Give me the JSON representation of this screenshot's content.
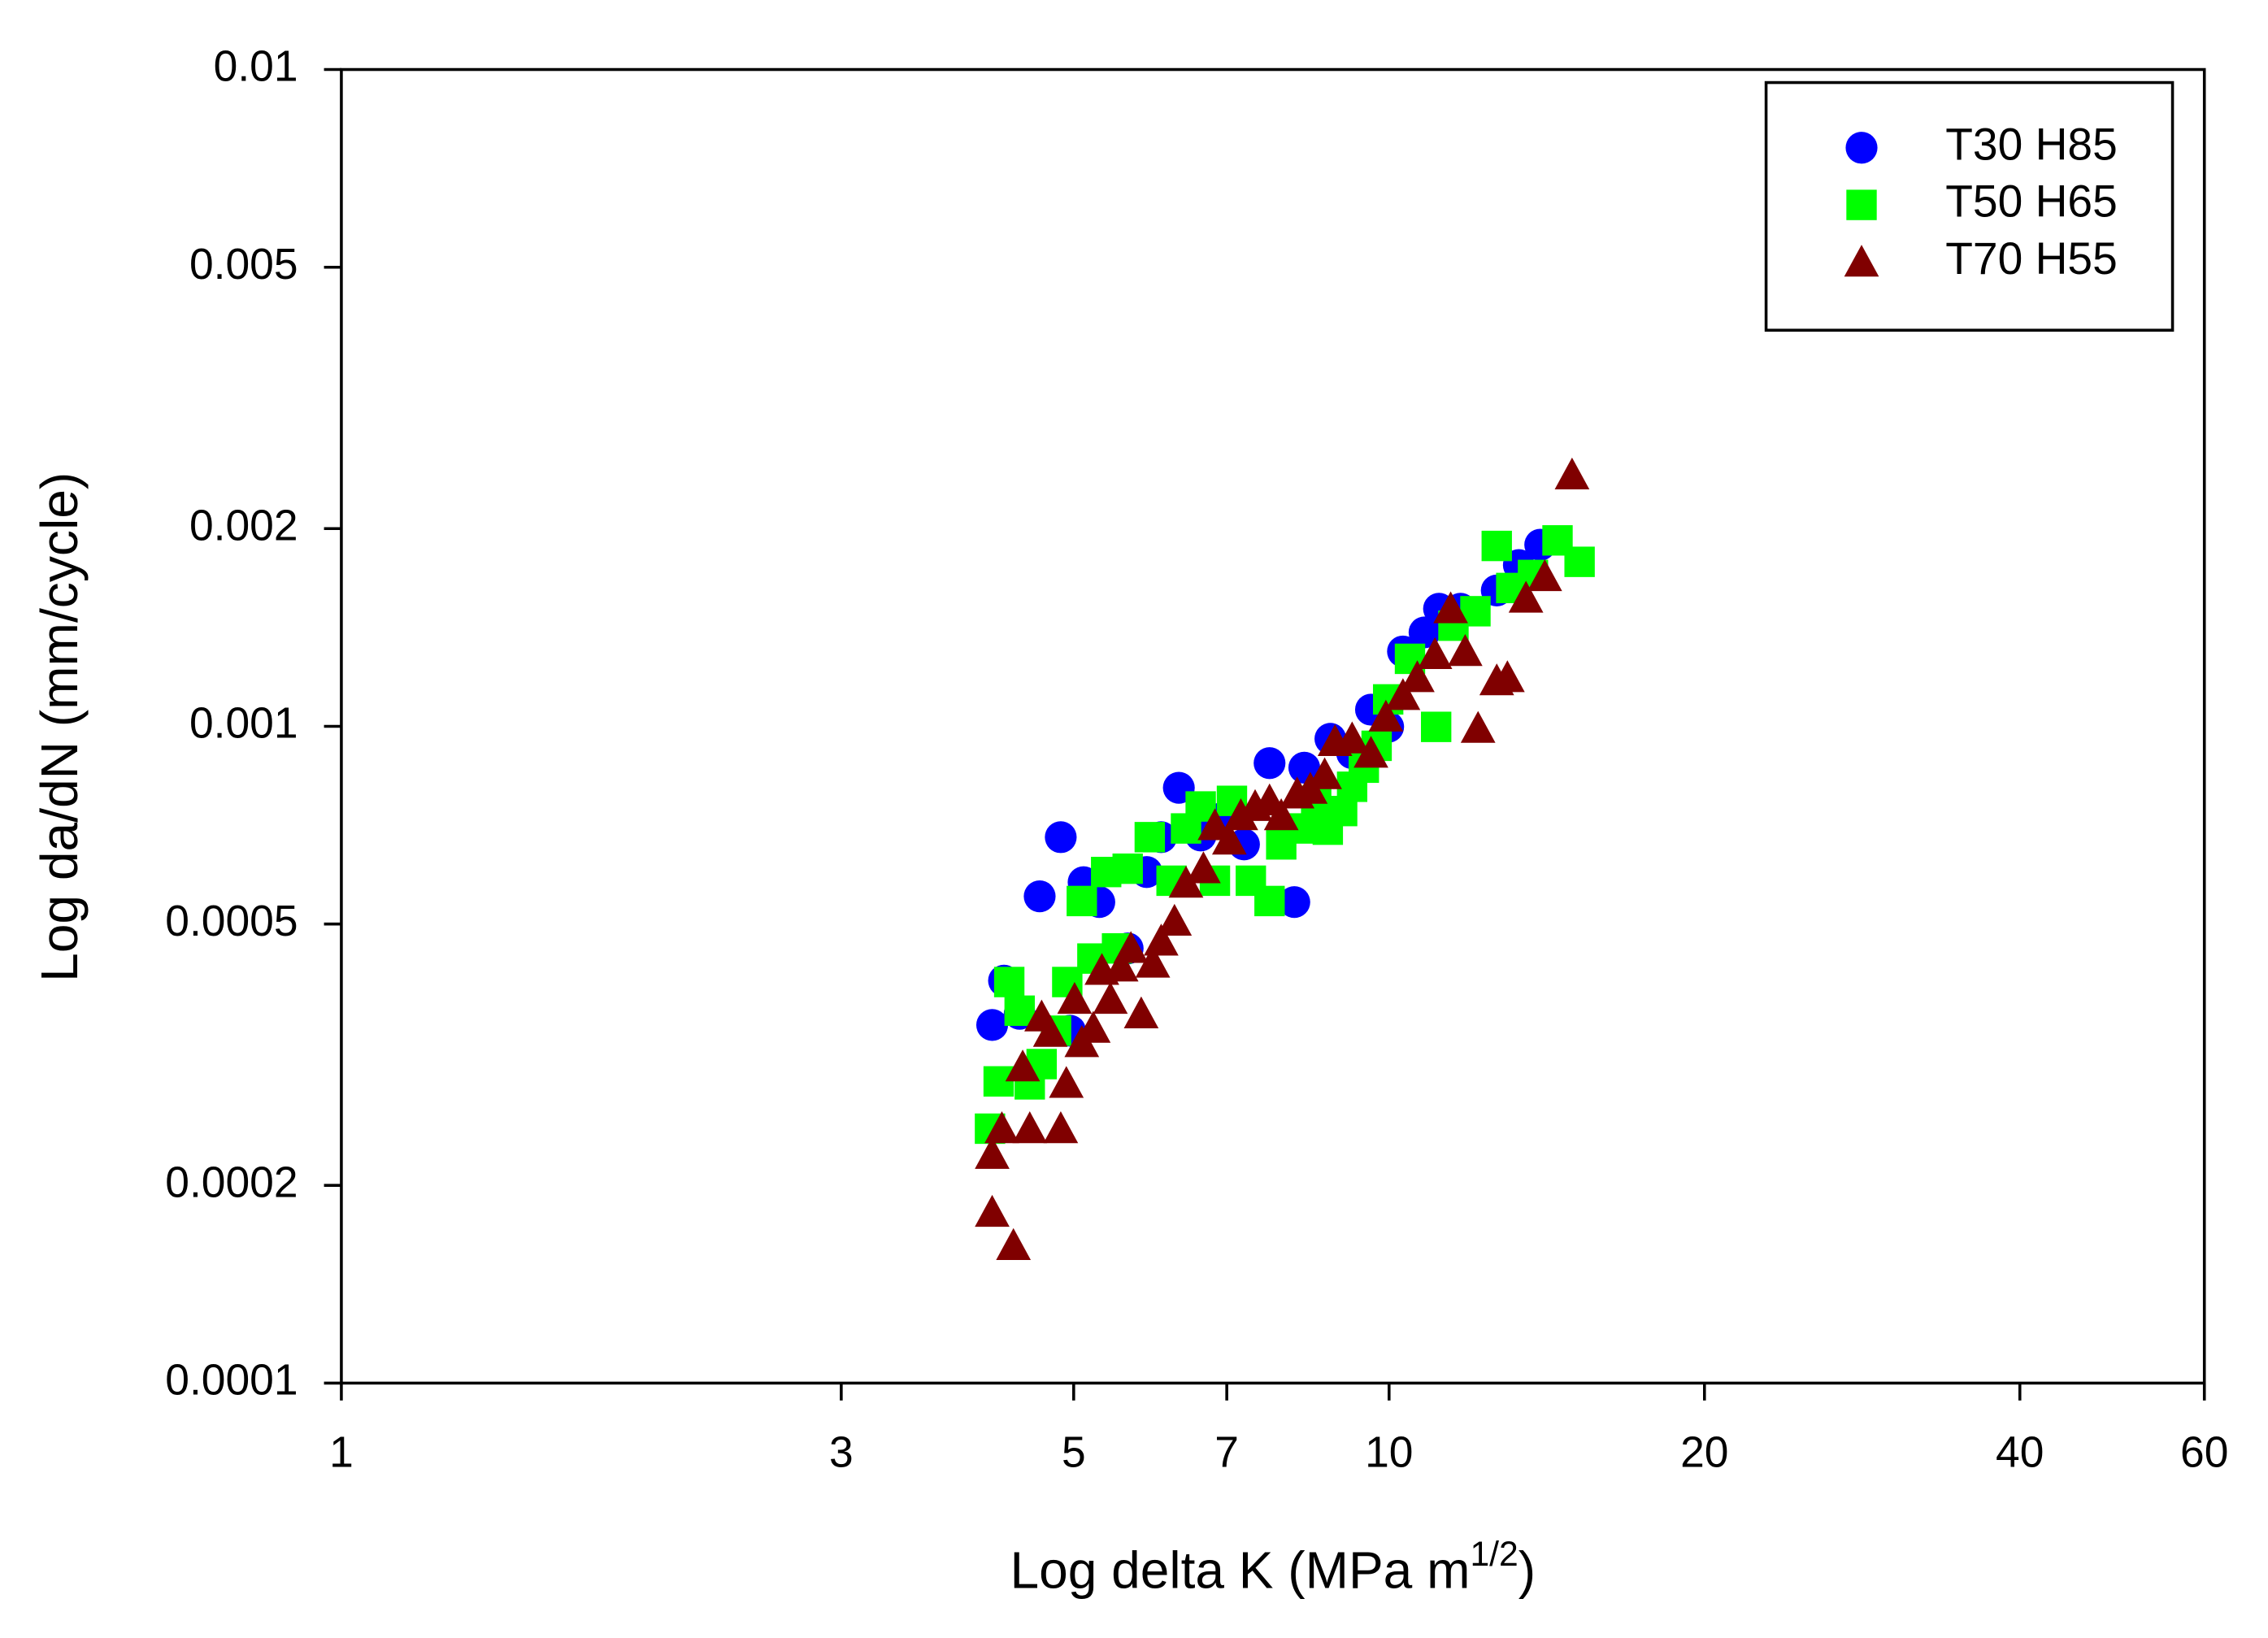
{
  "chart_data": {
    "type": "scatter",
    "x_label": "Log delta K (MPa m",
    "x_label_sup": "1/2",
    "x_label_end": ")",
    "y_label": "Log da/dN (mm/cycle)",
    "xscale": "log",
    "yscale": "log",
    "xlim": [
      1,
      60
    ],
    "ylim": [
      0.0001,
      0.01
    ],
    "xticks": [
      1,
      3,
      5,
      7,
      10,
      20,
      40,
      60
    ],
    "yticks": [
      0.0001,
      0.0002,
      0.0005,
      0.001,
      0.002,
      0.005,
      0.01
    ],
    "legend": "upper right",
    "series": [
      {
        "name": "T30 H85",
        "color": "#0000ff",
        "marker": "circle",
        "x": [
          4.18,
          4.29,
          4.44,
          4.64,
          4.86,
          4.96,
          5.11,
          5.29,
          5.63,
          5.87,
          6.06,
          6.3,
          6.61,
          6.93,
          7.27,
          7.69,
          8.12,
          8.3,
          8.79,
          9.22,
          9.61,
          9.98,
          10.31,
          10.81,
          11.16,
          11.7,
          12.67,
          13.3,
          13.94
        ],
        "values": [
          0.000351,
          0.00041,
          0.000365,
          0.000551,
          0.000678,
          0.000344,
          0.000579,
          0.00054,
          0.000459,
          0.0006,
          0.000678,
          0.000806,
          0.000682,
          0.000725,
          0.000661,
          0.000879,
          0.00054,
          0.000865,
          0.000957,
          0.00091,
          0.00106,
          0.000998,
          0.0013,
          0.00139,
          0.00151,
          0.00151,
          0.00161,
          0.00176,
          0.00189
        ]
      },
      {
        "name": "T50 H65",
        "color": "#00ff00",
        "marker": "square",
        "x": [
          4.16,
          4.24,
          4.34,
          4.44,
          4.54,
          4.66,
          4.81,
          4.93,
          5.09,
          5.21,
          5.37,
          5.5,
          5.63,
          5.91,
          6.2,
          6.4,
          6.61,
          6.82,
          7.08,
          7.38,
          7.69,
          7.89,
          8.2,
          8.52,
          8.74,
          9.02,
          9.22,
          9.46,
          9.73,
          9.98,
          10.47,
          11.09,
          11.52,
          12.09,
          12.67,
          13.08,
          13.72,
          14.48,
          15.2
        ],
        "values": [
          0.000244,
          0.000288,
          0.000408,
          0.000369,
          0.000285,
          0.000306,
          0.000344,
          0.000408,
          0.000542,
          0.000443,
          0.0006,
          0.000459,
          0.000607,
          0.000678,
          0.000582,
          0.000699,
          0.000755,
          0.000582,
          0.00077,
          0.000582,
          0.000542,
          0.000661,
          0.000699,
          0.00077,
          0.000696,
          0.000743,
          0.000809,
          0.000865,
          0.000934,
          0.001099,
          0.001267,
          0.000998,
          0.001423,
          0.001497,
          0.001882,
          0.001624,
          0.0017,
          0.001919,
          0.00178
        ]
      },
      {
        "name": "T70 H55",
        "color": "#800000",
        "marker": "triangle",
        "x": [
          4.18,
          4.18,
          4.27,
          4.38,
          4.47,
          4.54,
          4.66,
          4.75,
          4.86,
          4.92,
          5.01,
          5.09,
          5.22,
          5.32,
          5.42,
          5.55,
          5.67,
          5.8,
          5.95,
          6.06,
          6.24,
          6.4,
          6.65,
          6.82,
          7.04,
          7.22,
          7.45,
          7.69,
          7.89,
          8.17,
          8.41,
          8.68,
          8.88,
          9.22,
          9.61,
          9.93,
          10.31,
          10.64,
          11.06,
          11.45,
          11.82,
          12.16,
          12.67,
          12.97,
          13.51,
          14.08,
          14.95
        ],
        "values": [
          0.000223,
          0.000182,
          0.000244,
          0.000162,
          0.000303,
          0.000244,
          0.000361,
          0.000342,
          0.000244,
          0.000286,
          0.000384,
          0.00033,
          0.000347,
          0.000425,
          0.000384,
          0.00043,
          0.000459,
          0.000365,
          0.000436,
          0.000471,
          0.000505,
          0.000577,
          0.000607,
          0.000706,
          0.000671,
          0.000731,
          0.000755,
          0.00077,
          0.000731,
          0.000789,
          0.000802,
          0.000844,
          0.000948,
          0.000957,
          0.00091,
          0.001033,
          0.001114,
          0.001186,
          0.001286,
          0.00151,
          0.0013,
          0.000993,
          0.001173,
          0.001186,
          0.001567,
          0.00169,
          0.002414
        ]
      }
    ]
  }
}
